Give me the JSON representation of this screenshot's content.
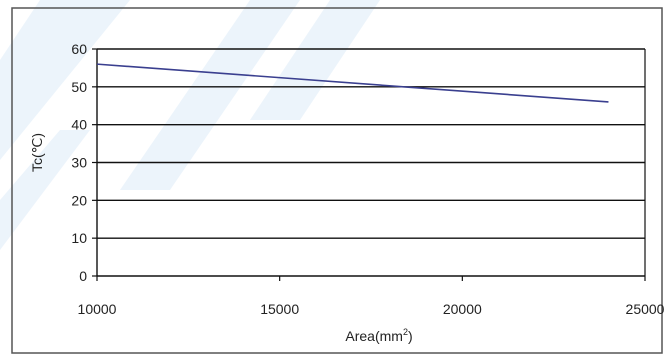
{
  "chart_data": {
    "type": "line",
    "title": "",
    "xlabel": "Area(mm",
    "xlabel_sup": "2",
    "xlabel_suffix": ")",
    "ylabel": "Tc(℃)",
    "xlim": [
      10000,
      25000
    ],
    "ylim": [
      0,
      60
    ],
    "x_ticks": [
      "10000",
      "15000",
      "20000",
      "25000"
    ],
    "y_ticks": [
      "0",
      "10",
      "20",
      "30",
      "40",
      "50",
      "60"
    ],
    "grid": "horizontal",
    "legend": "none",
    "series": [
      {
        "x": [
          10000,
          24000
        ],
        "y": [
          56,
          46
        ]
      }
    ],
    "colors": {
      "line": "#3a3f8f",
      "grid": "#111111",
      "frame": "#555555"
    }
  }
}
